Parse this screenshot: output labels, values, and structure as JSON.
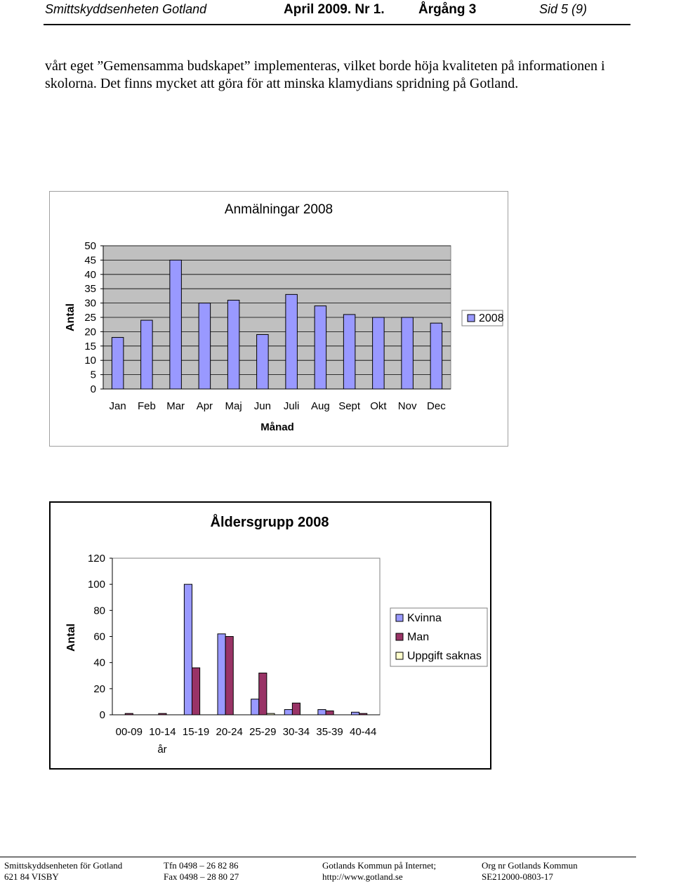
{
  "header": {
    "org": "Smittskyddsenheten Gotland",
    "date": "April 2009.  Nr 1.",
    "volume": "Årgång 3",
    "page": "Sid 5 (9)"
  },
  "body_text": "vårt eget ”Gemensamma budskapet” implementeras, vilket borde höja kvaliteten på informationen i skolorna. Det finns mycket att göra för att minska klamydians spridning på Gotland.",
  "chart_data": [
    {
      "type": "bar",
      "title": "Anmälningar 2008",
      "xlabel": "Månad",
      "ylabel": "Antal",
      "categories": [
        "Jan",
        "Feb",
        "Mar",
        "Apr",
        "Maj",
        "Jun",
        "Juli",
        "Aug",
        "Sept",
        "Okt",
        "Nov",
        "Dec"
      ],
      "series": [
        {
          "name": "2008",
          "color": "#9999ff",
          "values": [
            18,
            24,
            45,
            30,
            31,
            19,
            33,
            29,
            26,
            25,
            25,
            23
          ]
        }
      ],
      "ylim": [
        0,
        50
      ],
      "yticks": [
        0,
        5,
        10,
        15,
        20,
        25,
        30,
        35,
        40,
        45,
        50
      ],
      "grid": true,
      "plot_bg": "#c0c0c0",
      "legend": "right"
    },
    {
      "type": "bar",
      "title": "Åldersgrupp 2008",
      "xlabel": "år",
      "ylabel": "Antal",
      "categories": [
        "00-09",
        "10-14",
        "15-19",
        "20-24",
        "25-29",
        "30-34",
        "35-39",
        "40-44"
      ],
      "series": [
        {
          "name": "Kvinna",
          "color": "#9999ff",
          "values": [
            0,
            0,
            100,
            62,
            12,
            4,
            4,
            2
          ]
        },
        {
          "name": "Man",
          "color": "#993366",
          "values": [
            1,
            1,
            36,
            60,
            32,
            9,
            3,
            1
          ]
        },
        {
          "name": "Uppgift saknas",
          "color": "#ffffcc",
          "values": [
            0,
            0,
            0,
            0,
            1,
            0,
            0,
            0
          ]
        }
      ],
      "ylim": [
        0,
        120
      ],
      "yticks": [
        0,
        20,
        40,
        60,
        80,
        100,
        120
      ],
      "grid": false,
      "plot_bg": "#ffffff",
      "legend": "right"
    }
  ],
  "footer": {
    "col1": [
      "Smittskyddsenheten för Gotland",
      "621 84 VISBY"
    ],
    "col2": [
      "Tfn 0498 – 26 82 86",
      "Fax 0498 – 28 80 27"
    ],
    "col3": [
      "Gotlands Kommun på Internet;",
      "http://www.gotland.se"
    ],
    "col4": [
      "Org nr Gotlands Kommun",
      "SE212000-0803-17"
    ]
  }
}
